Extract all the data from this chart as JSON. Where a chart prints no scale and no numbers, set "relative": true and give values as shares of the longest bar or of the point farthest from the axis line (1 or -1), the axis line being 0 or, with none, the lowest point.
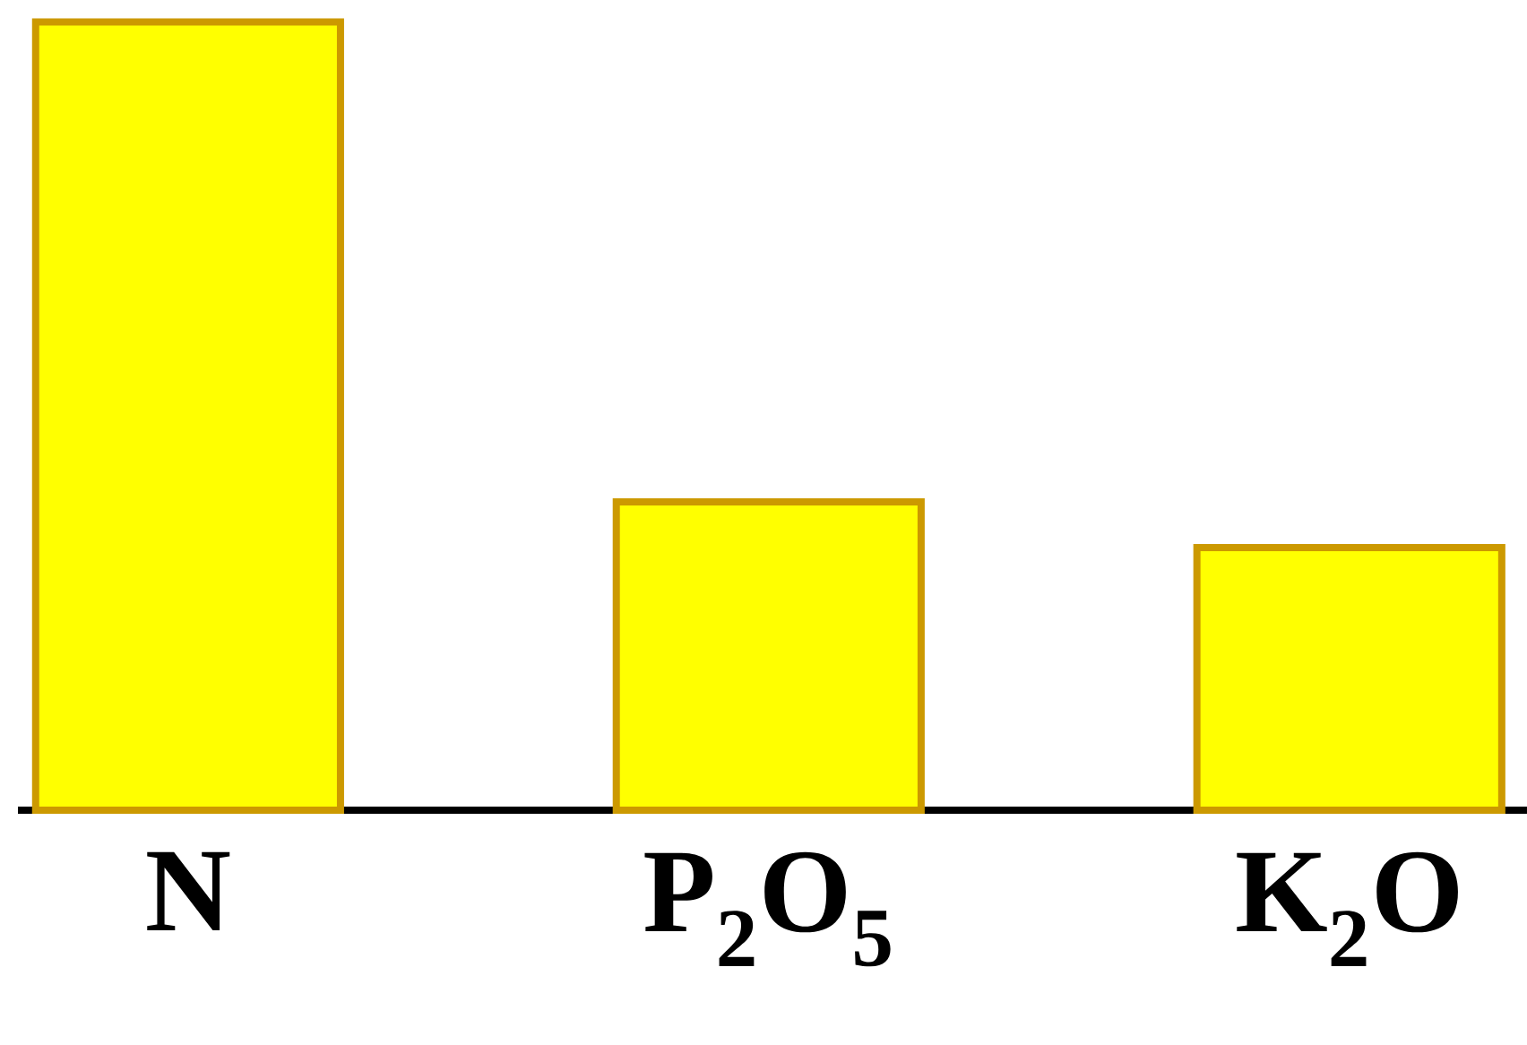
{
  "chart_data": {
    "type": "bar",
    "relative": true,
    "categories": [
      "N",
      "P$_{2}$O$_{5}$",
      "K$_{2}$O"
    ],
    "values": [
      1,
      0.391,
      0.333
    ],
    "color": "#ffff00"
  }
}
